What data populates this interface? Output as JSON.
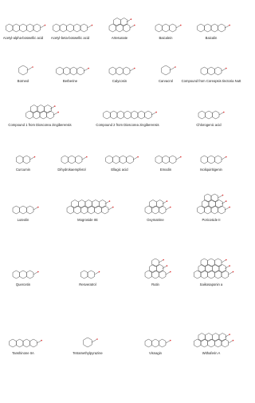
{
  "molecules": [
    {
      "label": "Acetyl-alpha-boswellic acid"
    },
    {
      "label": "Acetyl-beta-boswellic acid"
    },
    {
      "label": "Artesunate"
    },
    {
      "label": "Baicalein"
    },
    {
      "label": "Baicalin"
    },
    {
      "label": "Borneol"
    },
    {
      "label": "Berberine"
    },
    {
      "label": "Calycosin"
    },
    {
      "label": "Carvacrol"
    },
    {
      "label": "Compound from Coreopsis tinctoria Nutt"
    },
    {
      "label": "Compound 1 from Dioscorea zingiberensis"
    },
    {
      "label": "Compound 2 from Dioscorea zingiberensis"
    },
    {
      "label": "Chlorogenic acid"
    },
    {
      "label": "Curcumin"
    },
    {
      "label": "Dihydrokaempferol"
    },
    {
      "label": "Ellagic acid"
    },
    {
      "label": "Emodin"
    },
    {
      "label": "Isoliquiritigenin"
    },
    {
      "label": "Luteolin"
    },
    {
      "label": "Mogroside IIE"
    },
    {
      "label": "Oxymatrine"
    },
    {
      "label": "Poricoside II"
    },
    {
      "label": "Quercetin"
    },
    {
      "label": "Resveratrol"
    },
    {
      "label": "Rutin"
    },
    {
      "label": "Saikosaponin a"
    },
    {
      "label": "Tanshinone IIA"
    },
    {
      "label": "Tetramethylpyrazine"
    },
    {
      "label": "Visnagin"
    },
    {
      "label": "Withaferin A"
    }
  ]
}
